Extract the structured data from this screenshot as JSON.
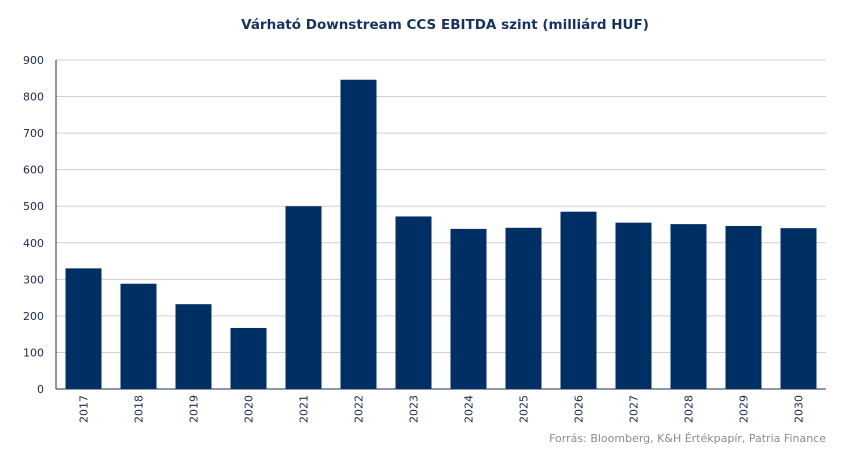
{
  "chart_data": {
    "type": "bar",
    "title": "Várható Downstream CCS EBITDA szint (milliárd HUF)",
    "xlabel": "",
    "ylabel": "",
    "categories": [
      "2017",
      "2018",
      "2019",
      "2020",
      "2021",
      "2022",
      "2023",
      "2024",
      "2025",
      "2026",
      "2027",
      "2028",
      "2029",
      "2030"
    ],
    "values": [
      330,
      288,
      232,
      167,
      500,
      846,
      472,
      438,
      441,
      485,
      455,
      451,
      446,
      440
    ],
    "ylim": [
      0,
      900
    ],
    "yticks": [
      0,
      100,
      200,
      300,
      400,
      500,
      600,
      700,
      800,
      900
    ],
    "grid": true,
    "bar_color": "#003063",
    "source": "Forrás: Bloomberg, K&H Értékpapír, Patria Finance"
  }
}
